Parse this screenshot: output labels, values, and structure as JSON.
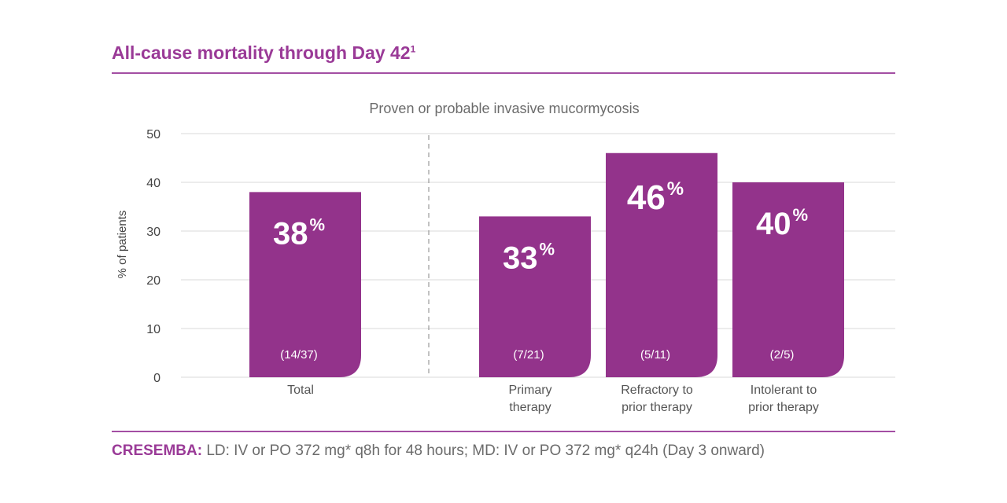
{
  "title": "All-cause mortality through Day 42",
  "title_sup": "1",
  "footer": {
    "brand": "CRESEMBA:",
    "text": " LD: IV or PO 372 mg* q8h for 48 hours; MD: IV or PO 372 mg* q24h (Day 3 onward)"
  },
  "colors": {
    "accent": "#9a3a97",
    "bar": "#93338b",
    "grid": "#d9d9d9"
  },
  "chart_data": {
    "type": "bar",
    "subtitle": "Proven or probable invasive mucormycosis",
    "ylabel": "% of patients",
    "xlabel": "",
    "ylim": [
      0,
      50
    ],
    "yticks": [
      0,
      10,
      20,
      30,
      40,
      50
    ],
    "grid": true,
    "bars": [
      {
        "label": [
          "Total"
        ],
        "value": 38,
        "pct_label": "38",
        "fraction": "(14/37)"
      },
      {
        "label": [
          "Primary",
          "therapy"
        ],
        "value": 33,
        "pct_label": "33",
        "fraction": "(7/21)"
      },
      {
        "label": [
          "Refractory to",
          "prior therapy"
        ],
        "value": 46,
        "pct_label": "46",
        "fraction": "(5/11)"
      },
      {
        "label": [
          "Intolerant to",
          "prior therapy"
        ],
        "value": 40,
        "pct_label": "40",
        "fraction": "(2/5)"
      }
    ],
    "percent_symbol": "%"
  }
}
